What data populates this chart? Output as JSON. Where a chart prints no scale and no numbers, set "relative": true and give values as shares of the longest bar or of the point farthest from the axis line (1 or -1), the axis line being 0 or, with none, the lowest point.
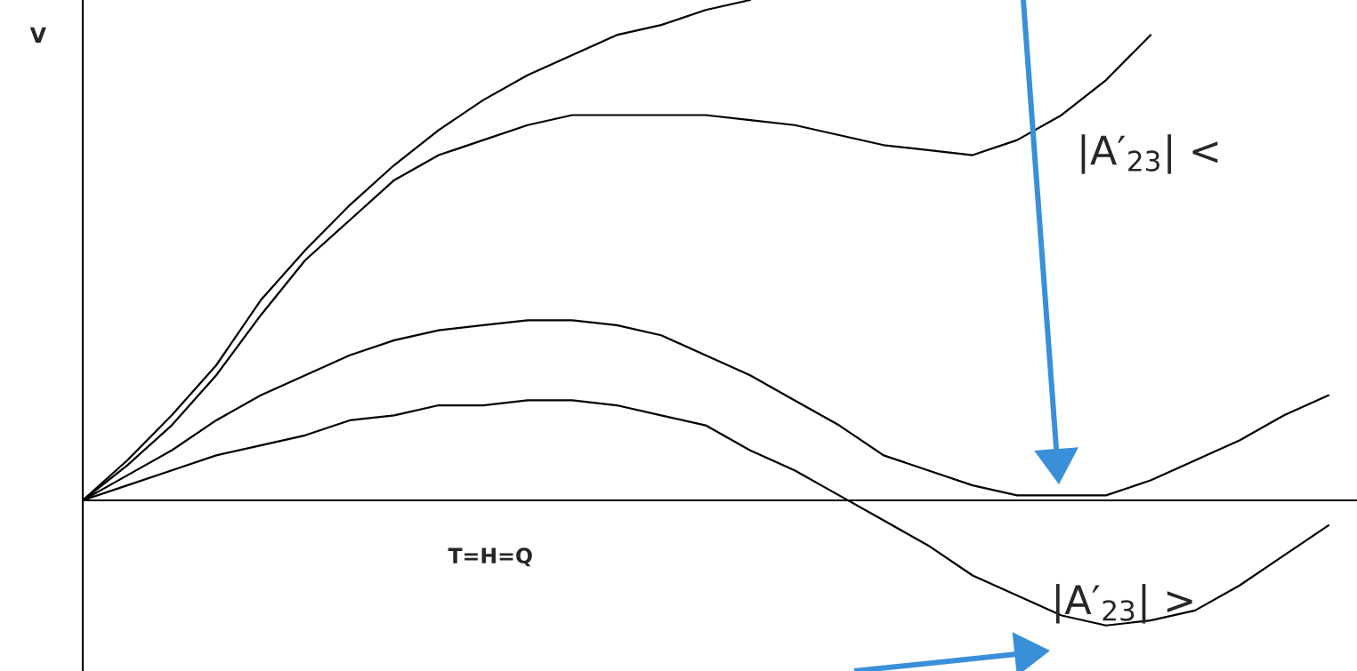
{
  "chart_data": {
    "type": "line",
    "relative": true,
    "xlabel": "T=H=Q",
    "ylabel": "V",
    "categories": [
      null,
      null,
      null,
      null,
      null,
      null,
      null,
      null,
      null,
      null,
      null,
      null,
      null,
      null,
      null,
      null,
      null,
      null,
      null,
      null,
      null,
      null,
      null,
      null,
      null,
      null,
      null,
      null,
      null
    ],
    "series": [
      {
        "color": "#000000",
        "values": [
          0,
          0.08,
          0.17,
          0.27,
          0.4,
          0.5,
          0.59,
          0.67,
          0.74,
          0.8,
          0.85,
          0.89,
          0.93,
          0.95,
          0.98,
          1.0,
          null,
          null,
          null,
          null,
          null,
          null,
          null,
          null,
          null,
          null,
          null,
          null,
          null
        ]
      },
      {
        "color": "#000000",
        "values": [
          0,
          0.07,
          0.15,
          0.25,
          0.37,
          0.48,
          0.56,
          0.64,
          0.69,
          0.72,
          0.75,
          0.77,
          0.77,
          0.77,
          0.77,
          0.76,
          0.75,
          0.73,
          0.71,
          0.7,
          0.69,
          0.72,
          0.77,
          0.84,
          0.93,
          null,
          null,
          null,
          null
        ]
      },
      {
        "color": "#000000",
        "values": [
          0,
          0.05,
          0.1,
          0.16,
          0.21,
          0.25,
          0.29,
          0.32,
          0.34,
          0.35,
          0.36,
          0.36,
          0.35,
          0.33,
          0.29,
          0.25,
          0.2,
          0.15,
          0.09,
          0.06,
          0.03,
          0.01,
          0.01,
          0.01,
          0.04,
          0.08,
          0.12,
          0.17,
          0.21
        ]
      },
      {
        "color": "#000000",
        "values": [
          0,
          0.03,
          0.06,
          0.09,
          0.11,
          0.13,
          0.16,
          0.17,
          0.19,
          0.19,
          0.2,
          0.2,
          0.19,
          0.17,
          0.15,
          0.1,
          0.06,
          0.01,
          -0.04,
          -0.09,
          -0.15,
          -0.19,
          -0.23,
          -0.25,
          -0.24,
          -0.22,
          -0.17,
          -0.11,
          -0.05
        ]
      }
    ],
    "annotations": [
      "|A′$_{23}$| <",
      "|A′$_{23}$| >"
    ]
  }
}
